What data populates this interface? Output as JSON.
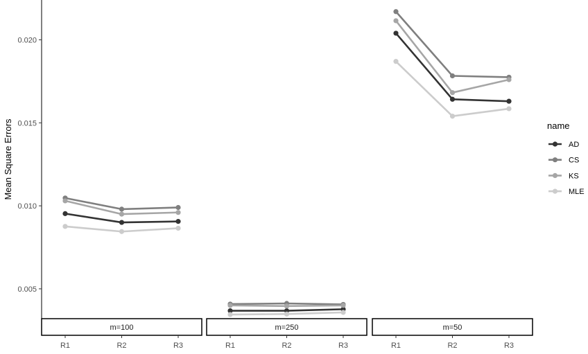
{
  "chart_data": {
    "type": "line",
    "ylabel": "Mean Square Errors",
    "xlabel": "",
    "ylim": [
      0.0022,
      0.0224
    ],
    "yticks": [
      "0.005",
      "0.010",
      "0.015",
      "0.020"
    ],
    "legend": {
      "title": "name",
      "placement": "right"
    },
    "grid": false,
    "categories": [
      "R1",
      "R2",
      "R3"
    ],
    "panels": [
      {
        "strip": "m=100",
        "series": [
          {
            "name": "AD",
            "color": "#333333",
            "values": [
              0.00953,
              0.009,
              0.00906
            ]
          },
          {
            "name": "CS",
            "color": "#7f7f7f",
            "values": [
              0.01047,
              0.0098,
              0.0099
            ]
          },
          {
            "name": "KS",
            "color": "#a6a6a6",
            "values": [
              0.0103,
              0.0095,
              0.0096
            ]
          },
          {
            "name": "MLE",
            "color": "#cccccc",
            "values": [
              0.00876,
              0.00845,
              0.00865
            ]
          }
        ]
      },
      {
        "strip": "m=250",
        "series": [
          {
            "name": "AD",
            "color": "#333333",
            "values": [
              0.00368,
              0.00368,
              0.00377
            ]
          },
          {
            "name": "CS",
            "color": "#7f7f7f",
            "values": [
              0.00408,
              0.00412,
              0.00406
            ]
          },
          {
            "name": "KS",
            "color": "#a6a6a6",
            "values": [
              0.004,
              0.00396,
              0.004
            ]
          },
          {
            "name": "MLE",
            "color": "#cccccc",
            "values": [
              0.00345,
              0.00348,
              0.00358
            ]
          }
        ]
      },
      {
        "strip": "m=50",
        "series": [
          {
            "name": "AD",
            "color": "#333333",
            "values": [
              0.0204,
              0.01642,
              0.0163
            ]
          },
          {
            "name": "CS",
            "color": "#7f7f7f",
            "values": [
              0.0217,
              0.01783,
              0.01775
            ]
          },
          {
            "name": "KS",
            "color": "#a6a6a6",
            "values": [
              0.02115,
              0.01682,
              0.0176
            ]
          },
          {
            "name": "MLE",
            "color": "#cccccc",
            "values": [
              0.0187,
              0.0154,
              0.01585
            ]
          }
        ]
      }
    ]
  }
}
